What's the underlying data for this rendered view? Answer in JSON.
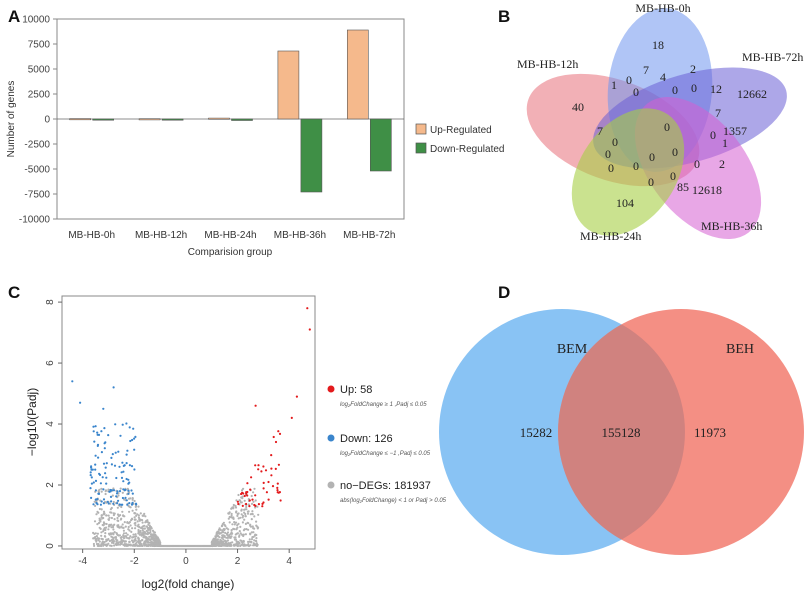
{
  "panels": {
    "a": "A",
    "b": "B",
    "c": "C",
    "d": "D"
  },
  "colors": {
    "up_bar": "#f5b98c",
    "down_bar": "#3f8f46",
    "venn_red": "#e8707a",
    "venn_blue": "#6f96ee",
    "venn_purple": "#7b6fd8",
    "venn_magenta": "#d65fd2",
    "venn_green": "#a6cf45",
    "volcano_up": "#e31a1c",
    "volcano_down": "#3a85cc",
    "volcano_no": "#b3b3b3",
    "bem": "#74b9f2",
    "beh": "#f27b6e"
  },
  "chart_data": [
    {
      "type": "bar",
      "panel": "A",
      "title": "",
      "xlabel": "Comparision  group",
      "ylabel": "Number of genes",
      "ylim": [
        -10000,
        10000
      ],
      "yticks": [
        -10000,
        -7500,
        -5000,
        -2500,
        0,
        2500,
        5000,
        7500,
        10000
      ],
      "categories": [
        "MB-HB-0h",
        "MB-HB-12h",
        "MB-HB-24h",
        "MB-HB-36h",
        "MB-HB-72h"
      ],
      "series": [
        {
          "name": "Up-Regulated",
          "values": [
            40,
            30,
            90,
            6800,
            8900
          ]
        },
        {
          "name": "Down-Regulated",
          "values": [
            -70,
            -60,
            -150,
            -7300,
            -5200
          ]
        }
      ]
    },
    {
      "type": "venn",
      "panel": "B",
      "sets": [
        "MB-HB-0h",
        "MB-HB-72h",
        "MB-HB-36h",
        "MB-HB-24h",
        "MB-HB-12h"
      ],
      "region_values": [
        "18",
        "12662",
        "12618",
        "104",
        "40",
        "1",
        "7",
        "4",
        "2",
        "12",
        "7",
        "0",
        "0",
        "0",
        "0",
        "0",
        "1357",
        "0",
        "1",
        "0",
        "2",
        "0",
        "85",
        "0",
        "0",
        "0",
        "0",
        "0",
        "7",
        "0",
        "0"
      ]
    },
    {
      "type": "scatter",
      "panel": "C",
      "xlabel": "log2(fold change)",
      "ylabel": "−log10(Padj)",
      "xlim": [
        -4.8,
        5.0
      ],
      "ylim": [
        -0.1,
        8.2
      ],
      "xticks": [
        -4,
        -2,
        0,
        2,
        4
      ],
      "yticks": [
        0,
        2,
        4,
        6,
        8
      ],
      "legend": [
        {
          "label": "Up: 58",
          "note": "log₂FoldChange ≥ 1 ,Padj ≤ 0.05"
        },
        {
          "label": "Down: 126",
          "note": "log₂FoldChange ≤ −1 ,Padj ≤ 0.05"
        },
        {
          "label": "no−DEGs: 181937",
          "note": "abs(log₂FoldChange) < 1  or Padj > 0.05"
        }
      ],
      "highlight_up": [
        [
          4.7,
          7.8
        ],
        [
          4.8,
          7.1
        ],
        [
          4.3,
          4.9
        ],
        [
          2.7,
          4.6
        ],
        [
          4.1,
          4.2
        ]
      ],
      "highlight_down": [
        [
          -4.4,
          5.4
        ],
        [
          -2.8,
          5.2
        ],
        [
          -4.1,
          4.7
        ],
        [
          -3.2,
          4.5
        ]
      ]
    },
    {
      "type": "venn",
      "panel": "D",
      "sets": [
        "BEM",
        "BEH"
      ],
      "values": {
        "BEM_only": "15282",
        "both": "155128",
        "BEH_only": "11973"
      }
    }
  ]
}
